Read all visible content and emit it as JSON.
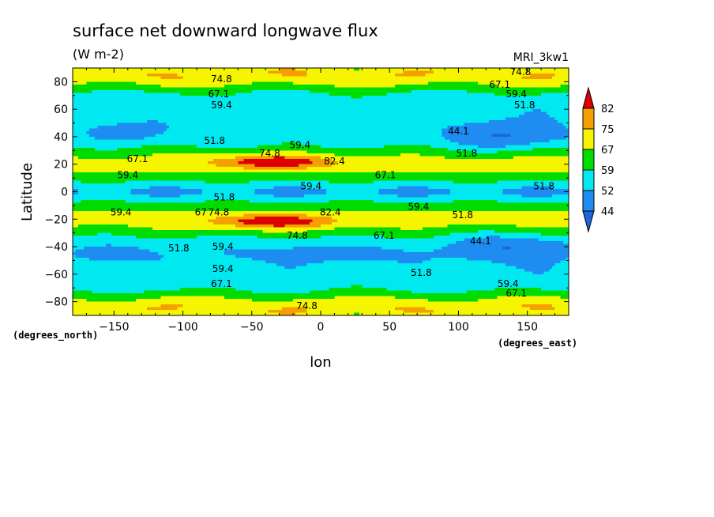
{
  "title": "surface net downward longwave flux",
  "subtitle": "(W m-2)",
  "model_label": "MRI_3kw1",
  "chart_data": {
    "type": "heatmap",
    "xlabel": "lon",
    "ylabel": "Latitude",
    "x_unit": "(degrees_east)",
    "y_unit": "(degrees_north)",
    "xlim": [
      -180,
      180
    ],
    "ylim": [
      -90,
      90
    ],
    "x_ticks": [
      -150,
      -100,
      -50,
      0,
      50,
      100,
      150
    ],
    "y_ticks": [
      -80,
      -60,
      -40,
      -20,
      0,
      20,
      40,
      60,
      80
    ],
    "x_tick_labels": [
      "−150",
      "−100",
      "−50",
      "0",
      "50",
      "100",
      "150"
    ],
    "y_tick_labels": [
      "−80",
      "−60",
      "−40",
      "−20",
      "0",
      "20",
      "40",
      "60",
      "80"
    ],
    "grid": false,
    "colorbar": {
      "labels": [
        "82",
        "75",
        "67",
        "59",
        "52",
        "44"
      ],
      "colors": [
        "#dc0000",
        "#f5a000",
        "#f5f500",
        "#00dc00",
        "#00e8f0",
        "#1e8cf0",
        "#1e64dc"
      ]
    },
    "contour_labels": [
      {
        "text": "74.8",
        "lon": -72,
        "lat": 82
      },
      {
        "text": "74.8",
        "lon": 145,
        "lat": 87
      },
      {
        "text": "67.1",
        "lon": 130,
        "lat": 78
      },
      {
        "text": "67.1",
        "lon": -74,
        "lat": 71
      },
      {
        "text": "59.4",
        "lon": 142,
        "lat": 71
      },
      {
        "text": "59.4",
        "lon": -72,
        "lat": 63
      },
      {
        "text": "51.8",
        "lon": 148,
        "lat": 63
      },
      {
        "text": "51.8",
        "lon": -77,
        "lat": 37
      },
      {
        "text": "44.1",
        "lon": 100,
        "lat": 44
      },
      {
        "text": "59.4",
        "lon": -15,
        "lat": 34
      },
      {
        "text": "74.8",
        "lon": -37,
        "lat": 28
      },
      {
        "text": "82.4",
        "lon": 10,
        "lat": 22
      },
      {
        "text": "67.1",
        "lon": -133,
        "lat": 24
      },
      {
        "text": "51.8",
        "lon": 106,
        "lat": 28
      },
      {
        "text": "59.4",
        "lon": -140,
        "lat": 12
      },
      {
        "text": "67.1",
        "lon": 47,
        "lat": 12
      },
      {
        "text": "59.4",
        "lon": -7,
        "lat": 4
      },
      {
        "text": "51.8",
        "lon": 162,
        "lat": 4
      },
      {
        "text": "51.8",
        "lon": -70,
        "lat": -4
      },
      {
        "text": "59.4",
        "lon": 71,
        "lat": -11
      },
      {
        "text": "59.4",
        "lon": -145,
        "lat": -15
      },
      {
        "text": "67",
        "lon": -87,
        "lat": -15
      },
      {
        "text": "74.8",
        "lon": -74,
        "lat": -15
      },
      {
        "text": "82.4",
        "lon": 7,
        "lat": -15
      },
      {
        "text": "51.8",
        "lon": 103,
        "lat": -17
      },
      {
        "text": "74.8",
        "lon": -17,
        "lat": -32
      },
      {
        "text": "67.1",
        "lon": 46,
        "lat": -32
      },
      {
        "text": "44.1",
        "lon": 116,
        "lat": -36
      },
      {
        "text": "51.8",
        "lon": -103,
        "lat": -41
      },
      {
        "text": "59.4",
        "lon": -71,
        "lat": -40
      },
      {
        "text": "59.4",
        "lon": -71,
        "lat": -56
      },
      {
        "text": "51.8",
        "lon": 73,
        "lat": -59
      },
      {
        "text": "67.1",
        "lon": -72,
        "lat": -67
      },
      {
        "text": "59.4",
        "lon": 136,
        "lat": -67
      },
      {
        "text": "67.1",
        "lon": 142,
        "lat": -74
      },
      {
        "text": "74.8",
        "lon": -10,
        "lat": -83
      }
    ]
  }
}
